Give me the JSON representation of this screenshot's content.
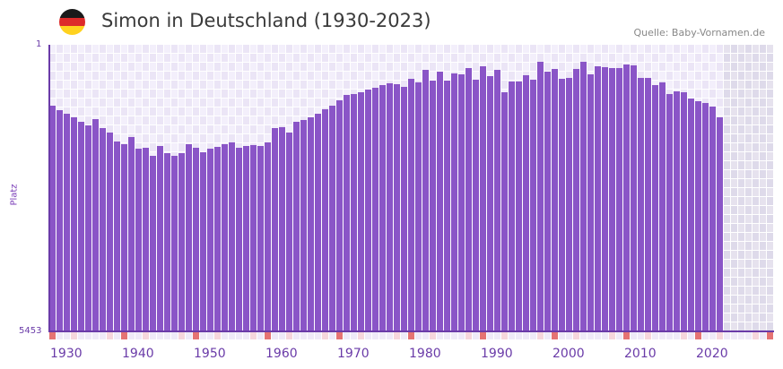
{
  "header": {
    "title": "Simon in Deutschland (1930-2023)",
    "source": "Quelle: Baby-Vornamen.de",
    "flag_icon": "germany-flag-icon",
    "flag_colors": [
      "#1a1a1a",
      "#dd2a2a",
      "#ffd21f"
    ]
  },
  "colors": {
    "bar": "#8a55c7",
    "axis": "#6a3ba8",
    "grid_a": "#f3effb",
    "grid_b": "#ebe5f6",
    "future_a": "#e6e2ee",
    "future_b": "#dedaea",
    "decade_mark": "#e57373",
    "half_decade_mark": "#f6d6dc",
    "year_mark": "#efeaf8"
  },
  "chart_data": {
    "type": "bar",
    "title": "Simon in Deutschland (1930-2023)",
    "xlabel": "",
    "ylabel": "Platz",
    "ylim": [
      5453,
      1
    ],
    "y_inverted": true,
    "y_ticks": [
      "1",
      "5453"
    ],
    "x_range": [
      1930,
      2030
    ],
    "x_ticks": [
      "1930",
      "1940",
      "1950",
      "1960",
      "1970",
      "1980",
      "1990",
      "2000",
      "2010",
      "2020"
    ],
    "grid": true,
    "legend": null,
    "categories_start": 1930,
    "categories_end": 2023,
    "series": [
      {
        "name": "Simon",
        "values": [
          1160,
          1245,
          1313,
          1381,
          1467,
          1535,
          1415,
          1586,
          1671,
          1842,
          1893,
          1756,
          1978,
          1961,
          2114,
          1927,
          2063,
          2114,
          2063,
          1893,
          1961,
          2046,
          1978,
          1944,
          1893,
          1859,
          1961,
          1927,
          1910,
          1927,
          1859,
          1586,
          1569,
          1671,
          1467,
          1433,
          1381,
          1313,
          1228,
          1160,
          1058,
          955,
          938,
          904,
          853,
          819,
          768,
          734,
          751,
          802,
          640,
          717,
          478,
          683,
          512,
          683,
          546,
          563,
          444,
          665,
          410,
          597,
          478,
          904,
          700,
          700,
          581,
          665,
          324,
          512,
          461,
          648,
          632,
          461,
          324,
          563,
          410,
          427,
          444,
          444,
          376,
          393,
          632,
          632,
          768,
          717,
          938,
          887,
          904,
          1023,
          1074,
          1108,
          1177,
          1381
        ]
      }
    ]
  },
  "yaxis": {
    "top_label": "1",
    "bottom_label": "5453",
    "title": "Platz"
  }
}
